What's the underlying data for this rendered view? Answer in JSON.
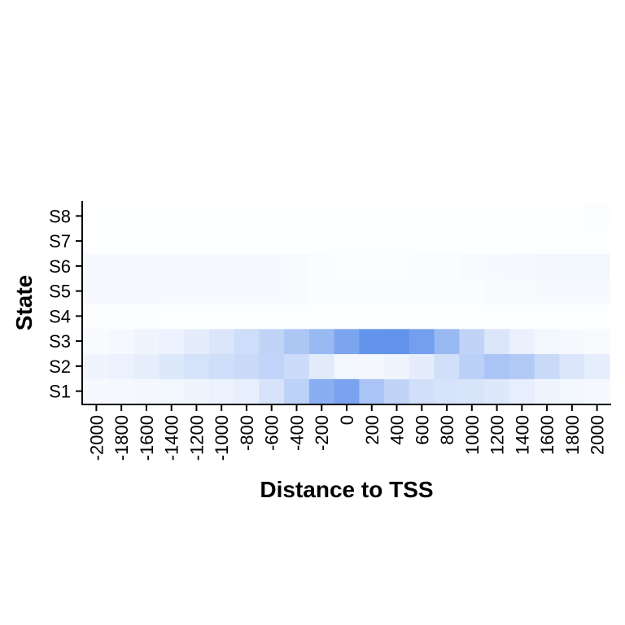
{
  "chart_data": {
    "type": "heatmap",
    "xlabel": "Distance to TSS",
    "ylabel": "State",
    "x_categories": [
      "-2000",
      "-1800",
      "-1600",
      "-1400",
      "-1200",
      "-1000",
      "-800",
      "-600",
      "-400",
      "-200",
      "0",
      "200",
      "400",
      "600",
      "800",
      "1000",
      "1200",
      "1400",
      "1600",
      "1800",
      "2000"
    ],
    "y_categories": [
      "S1",
      "S2",
      "S3",
      "S4",
      "S5",
      "S6",
      "S7",
      "S8"
    ],
    "color_low": "#ffffff",
    "color_high": "#5b8eeb",
    "value_range": [
      0,
      1
    ],
    "values": {
      "S1": [
        0.05,
        0.06,
        0.07,
        0.08,
        0.09,
        0.12,
        0.14,
        0.25,
        0.4,
        0.72,
        0.82,
        0.52,
        0.38,
        0.28,
        0.25,
        0.24,
        0.2,
        0.14,
        0.1,
        0.08,
        0.06
      ],
      "S2": [
        0.1,
        0.12,
        0.15,
        0.2,
        0.26,
        0.29,
        0.33,
        0.37,
        0.32,
        0.18,
        0.08,
        0.07,
        0.09,
        0.16,
        0.28,
        0.42,
        0.52,
        0.48,
        0.33,
        0.22,
        0.15
      ],
      "S3": [
        0.04,
        0.06,
        0.09,
        0.12,
        0.16,
        0.22,
        0.3,
        0.38,
        0.5,
        0.62,
        0.8,
        0.95,
        0.96,
        0.85,
        0.62,
        0.38,
        0.22,
        0.13,
        0.08,
        0.05,
        0.04
      ],
      "S4": [
        0.02,
        0.02,
        0.02,
        0.01,
        0.01,
        0.01,
        0.01,
        0.01,
        0.01,
        0.01,
        0.01,
        0.01,
        0.01,
        0.01,
        0.01,
        0.01,
        0.01,
        0.01,
        0.01,
        0.01,
        0.01
      ],
      "S5": [
        0.05,
        0.05,
        0.05,
        0.05,
        0.05,
        0.05,
        0.05,
        0.05,
        0.04,
        0.03,
        0.03,
        0.03,
        0.03,
        0.03,
        0.03,
        0.03,
        0.04,
        0.04,
        0.05,
        0.05,
        0.05
      ],
      "S6": [
        0.05,
        0.05,
        0.05,
        0.05,
        0.05,
        0.05,
        0.05,
        0.05,
        0.04,
        0.03,
        0.02,
        0.02,
        0.02,
        0.03,
        0.03,
        0.04,
        0.05,
        0.06,
        0.07,
        0.08,
        0.08
      ],
      "S7": [
        0.01,
        0.01,
        0.01,
        0.01,
        0.01,
        0.01,
        0.01,
        0.01,
        0.01,
        0.01,
        0.01,
        0.01,
        0.01,
        0.01,
        0.01,
        0.01,
        0.01,
        0.01,
        0.01,
        0.01,
        0.01
      ],
      "S8": [
        0.01,
        0.01,
        0.01,
        0.01,
        0.01,
        0.01,
        0.01,
        0.01,
        0.01,
        0.01,
        0.01,
        0.01,
        0.01,
        0.01,
        0.01,
        0.01,
        0.01,
        0.01,
        0.01,
        0.01,
        0.02
      ]
    },
    "grid": false,
    "legend": "none"
  }
}
